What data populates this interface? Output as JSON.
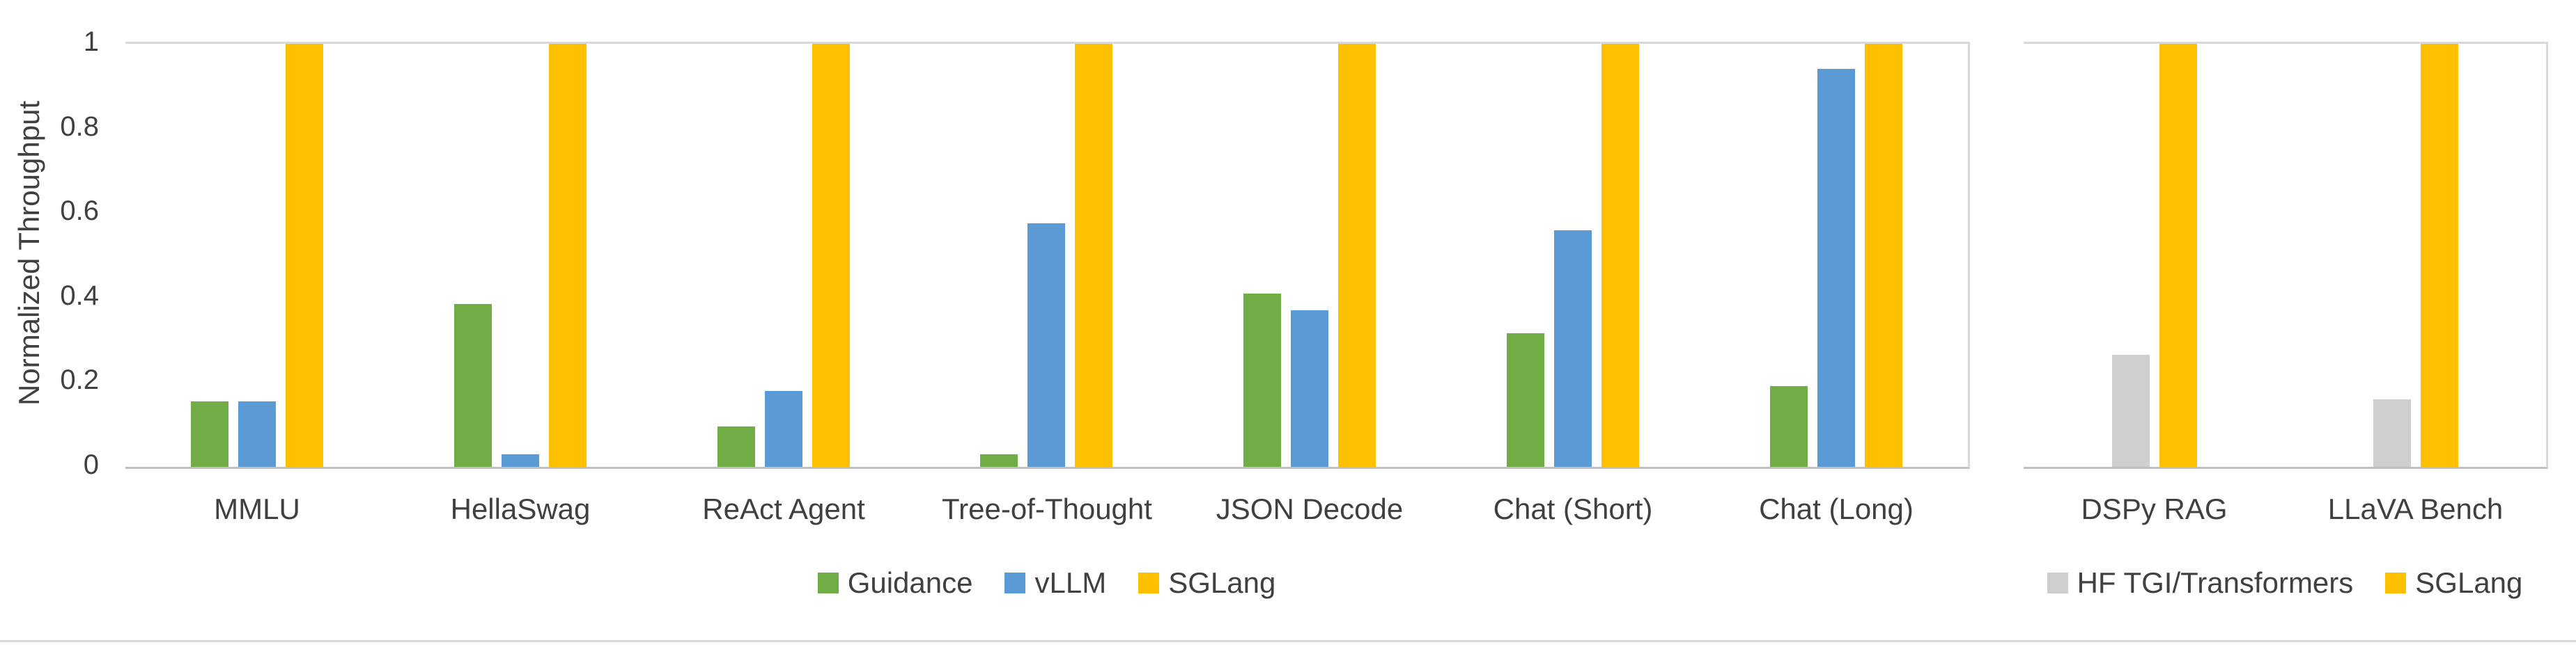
{
  "axis": {
    "ylabel": "Normalized Throughput",
    "ticks": [
      {
        "label": "1",
        "value": 1.0
      },
      {
        "label": "0.8",
        "value": 0.8
      },
      {
        "label": "0.6",
        "value": 0.6
      },
      {
        "label": "0.4",
        "value": 0.4
      },
      {
        "label": "0.2",
        "value": 0.2
      },
      {
        "label": "0",
        "value": 0.0
      }
    ]
  },
  "chart_data": [
    {
      "type": "bar",
      "title": "",
      "ylabel": "Normalized Throughput",
      "ylim": [
        0,
        1
      ],
      "yticks": [
        0,
        0.2,
        0.4,
        0.6,
        0.8,
        1
      ],
      "grid": "top-gridline-and-baseline-only",
      "legend_position": "bottom",
      "categories": [
        "MMLU",
        "HellaSwag",
        "ReAct Agent",
        "Tree-of-Thought",
        "JSON Decode",
        "Chat (Short)",
        "Chat (Long)"
      ],
      "series": [
        {
          "name": "Guidance",
          "color": "#70AD47",
          "values": [
            0.155,
            0.385,
            0.095,
            0.03,
            0.41,
            0.315,
            0.19
          ]
        },
        {
          "name": "vLLM",
          "color": "#5B9BD5",
          "values": [
            0.155,
            0.03,
            0.18,
            0.575,
            0.37,
            0.56,
            0.94
          ]
        },
        {
          "name": "SGLang",
          "color": "#FFC000",
          "values": [
            1,
            1,
            1,
            1,
            1,
            1,
            1
          ]
        }
      ]
    },
    {
      "type": "bar",
      "title": "",
      "ylim": [
        0,
        1
      ],
      "yticks": [
        0,
        0.2,
        0.4,
        0.6,
        0.8,
        1
      ],
      "grid": "top-gridline-and-baseline-only",
      "legend_position": "bottom",
      "categories": [
        "DSPy RAG",
        "LLaVA Bench"
      ],
      "series": [
        {
          "name": "HF TGI/Transformers",
          "color": "#D0CECE",
          "values": [
            0.265,
            0.16
          ]
        },
        {
          "name": "SGLang",
          "color": "#FFC000",
          "values": [
            1,
            1
          ]
        }
      ]
    }
  ],
  "colors": {
    "guidance_green": "#70AD47",
    "vllm_blue": "#5B9BD5",
    "sglang_yellow": "#FFC000",
    "hf_gray": "#D0CECE",
    "gridline": "#D9D9D9",
    "axis_line": "#BFBFBF",
    "text": "#404040"
  }
}
